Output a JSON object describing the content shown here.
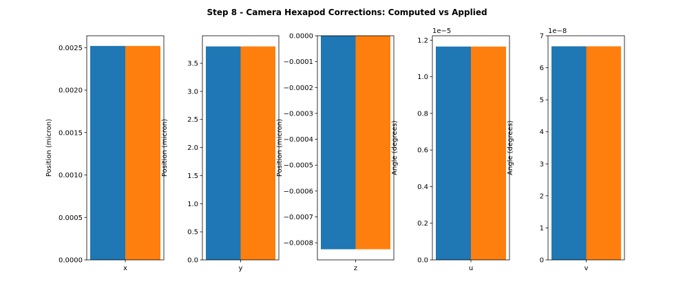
{
  "title": "Step 8 - Camera Hexapod Corrections: Computed vs Applied",
  "colors": {
    "computed": "#1f77b4",
    "applied": "#ff7f0e"
  },
  "chart_data": [
    {
      "type": "bar",
      "categories": [
        "x"
      ],
      "series": [
        {
          "values": [
            0.00252
          ]
        },
        {
          "values": [
            0.00252
          ]
        }
      ],
      "xlabel": "x",
      "ylabel": "Position (micron)",
      "ylim": [
        0,
        0.00264
      ],
      "yticks": [
        0.0,
        0.0005,
        0.001,
        0.0015,
        0.002,
        0.0025
      ],
      "ytick_labels": [
        "0.0000",
        "0.0005",
        "0.0010",
        "0.0015",
        "0.0020",
        "0.0025"
      ],
      "offset_text": ""
    },
    {
      "type": "bar",
      "categories": [
        "y"
      ],
      "series": [
        {
          "values": [
            3.8
          ]
        },
        {
          "values": [
            3.8
          ]
        }
      ],
      "xlabel": "y",
      "ylabel": "Position (micron)",
      "ylim": [
        0,
        3.99
      ],
      "yticks": [
        0.0,
        0.5,
        1.0,
        1.5,
        2.0,
        2.5,
        3.0,
        3.5
      ],
      "ytick_labels": [
        "0.0",
        "0.5",
        "1.0",
        "1.5",
        "2.0",
        "2.5",
        "3.0",
        "3.5"
      ],
      "offset_text": ""
    },
    {
      "type": "bar",
      "categories": [
        "z"
      ],
      "series": [
        {
          "values": [
            -0.000825
          ]
        },
        {
          "values": [
            -0.000825
          ]
        }
      ],
      "xlabel": "z",
      "ylabel": "Position (micron)",
      "ylim": [
        -0.000866,
        0
      ],
      "yticks": [
        0.0,
        -0.0001,
        -0.0002,
        -0.0003,
        -0.0004,
        -0.0005,
        -0.0006,
        -0.0007,
        -0.0008
      ],
      "ytick_labels": [
        "0.0000",
        "−0.0001",
        "−0.0002",
        "−0.0003",
        "−0.0004",
        "−0.0005",
        "−0.0006",
        "−0.0007",
        "−0.0008"
      ],
      "offset_text": ""
    },
    {
      "type": "bar",
      "categories": [
        "u"
      ],
      "series": [
        {
          "values": [
            1.165e-05
          ]
        },
        {
          "values": [
            1.165e-05
          ]
        }
      ],
      "xlabel": "u",
      "ylabel": "Angle (degrees)",
      "ylim": [
        0,
        1.224e-05
      ],
      "yticks": [
        0.0,
        2e-06,
        4e-06,
        6e-06,
        8e-06,
        1e-05,
        1.2e-05
      ],
      "ytick_labels": [
        "0.0",
        "0.2",
        "0.4",
        "0.6",
        "0.8",
        "1.0",
        "1.2"
      ],
      "offset_text": "1e−5"
    },
    {
      "type": "bar",
      "categories": [
        "v"
      ],
      "series": [
        {
          "values": [
            6.67e-08
          ]
        },
        {
          "values": [
            6.67e-08
          ]
        }
      ],
      "xlabel": "v",
      "ylabel": "Angle (degrees)",
      "ylim": [
        0,
        7e-08
      ],
      "yticks": [
        0,
        1e-08,
        2e-08,
        3e-08,
        4e-08,
        5e-08,
        6e-08,
        7e-08
      ],
      "ytick_labels": [
        "0",
        "1",
        "2",
        "3",
        "4",
        "5",
        "6",
        "7"
      ],
      "offset_text": "1e−8"
    }
  ]
}
